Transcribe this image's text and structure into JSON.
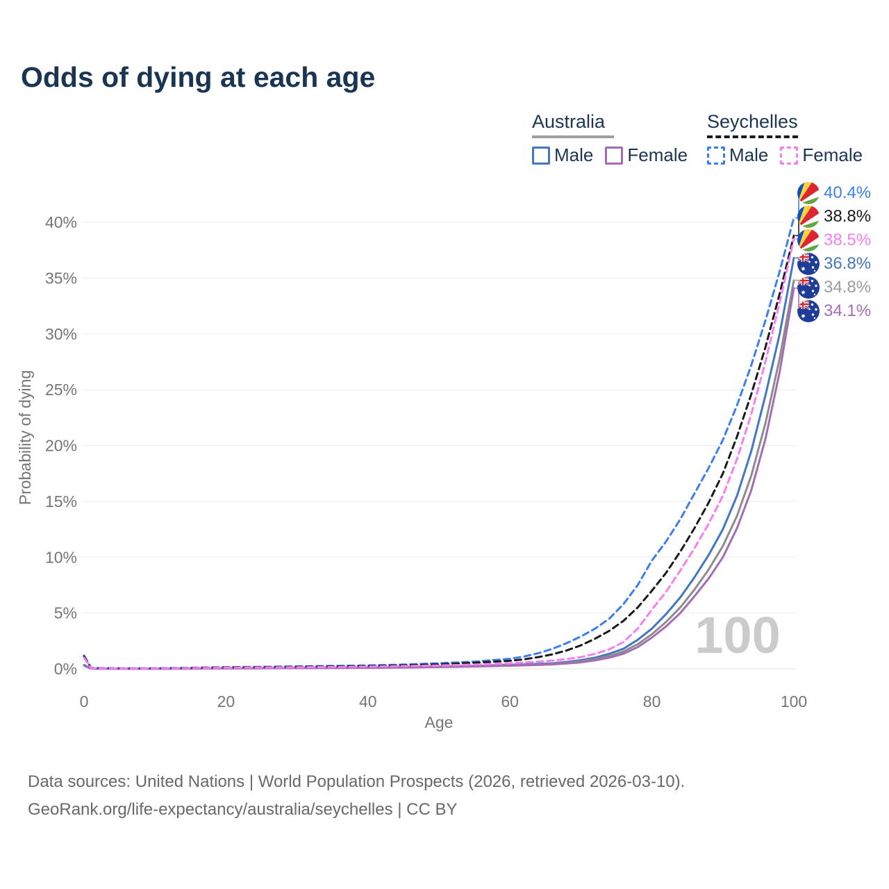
{
  "title": "Odds of dying at each age",
  "watermark": "100",
  "colors": {
    "title": "#1a3553",
    "legend_text": "#1c3554",
    "axis_text": "#757575",
    "grid": "#ebebeb",
    "axis_line": "#dedede",
    "watermark": "#cbcbcb",
    "australia_male": "#4377c0",
    "australia_female": "#a46cb4",
    "australia_both": "#8c8c8c",
    "seychelles_male": "#3b7ef2",
    "seychelles_female": "#f97df2",
    "seychelles_both": "#1a1a1a"
  },
  "legend": {
    "australia": {
      "label": "Australia",
      "underline_color": "#9e9e9e",
      "underline_style": "solid",
      "male": {
        "label": "Male",
        "color": "#4377c0",
        "dash": false
      },
      "female": {
        "label": "Female",
        "color": "#a46cb4",
        "dash": false
      }
    },
    "seychelles": {
      "label": "Seychelles",
      "underline_color": "#1a1a1a",
      "underline_style": "dashed",
      "male": {
        "label": "Male",
        "color": "#3b7ef2",
        "dash": true
      },
      "female": {
        "label": "Female",
        "color": "#f97df2",
        "dash": true
      }
    }
  },
  "end_labels": [
    {
      "series": "seychelles-male",
      "value": "40.4%",
      "color": "#3b7ef2",
      "flag": "seychelles"
    },
    {
      "series": "seychelles-both",
      "value": "38.8%",
      "color": "#1a1a1a",
      "flag": "seychelles"
    },
    {
      "series": "seychelles-female",
      "value": "38.5%",
      "color": "#f97df2",
      "flag": "seychelles"
    },
    {
      "series": "australia-male",
      "value": "36.8%",
      "color": "#4377c0",
      "flag": "australia"
    },
    {
      "series": "australia-both",
      "value": "34.8%",
      "color": "#9c9c9c",
      "flag": "australia"
    },
    {
      "series": "australia-female",
      "value": "34.1%",
      "color": "#a46cb4",
      "flag": "australia"
    }
  ],
  "footer": {
    "line1": "Data sources: United Nations | World Population Prospects (2026, retrieved 2026-03-10).",
    "line2": "GeoRank.org/life-expectancy/australia/seychelles | CC BY"
  },
  "chart_data": {
    "type": "line",
    "title": "Odds of dying at each age",
    "xlabel": "Age",
    "ylabel": "Probability of dying",
    "xlim": [
      0,
      100
    ],
    "ylim_percent": [
      0,
      42
    ],
    "xticks": [
      0,
      20,
      40,
      60,
      80,
      100
    ],
    "ytick_labels": [
      "0%",
      "5%",
      "10%",
      "15%",
      "20%",
      "25%",
      "30%",
      "35%",
      "40%"
    ],
    "grid": "horizontal",
    "legend_position": "top-right",
    "hovered_age": "100",
    "ages": [
      0,
      1,
      5,
      10,
      15,
      20,
      25,
      30,
      35,
      40,
      45,
      50,
      55,
      60,
      62,
      64,
      66,
      68,
      70,
      72,
      74,
      76,
      78,
      80,
      82,
      84,
      86,
      88,
      90,
      92,
      94,
      96,
      98,
      100
    ],
    "series": [
      {
        "id": "australia-male",
        "name": "Australia Male",
        "color": "#4377c0",
        "dash": false,
        "end_value_percent": 36.8,
        "values": [
          0.35,
          0.03,
          0.01,
          0.01,
          0.03,
          0.05,
          0.06,
          0.08,
          0.09,
          0.11,
          0.15,
          0.2,
          0.27,
          0.36,
          0.4,
          0.45,
          0.5,
          0.62,
          0.78,
          1.0,
          1.35,
          1.8,
          2.6,
          3.6,
          4.9,
          6.4,
          8.2,
          10.2,
          12.5,
          15.5,
          19.5,
          24.5,
          30.0,
          36.8
        ]
      },
      {
        "id": "australia-both",
        "name": "Australia",
        "color": "#8c8c8c",
        "dash": false,
        "end_value_percent": 34.8,
        "values": [
          0.3,
          0.025,
          0.009,
          0.009,
          0.025,
          0.045,
          0.055,
          0.07,
          0.085,
          0.1,
          0.14,
          0.18,
          0.24,
          0.32,
          0.36,
          0.4,
          0.45,
          0.55,
          0.68,
          0.88,
          1.15,
          1.55,
          2.2,
          3.1,
          4.2,
          5.5,
          7.1,
          8.9,
          11.0,
          13.7,
          17.3,
          22.0,
          27.8,
          34.8
        ]
      },
      {
        "id": "australia-female",
        "name": "Australia Female",
        "color": "#a46cb4",
        "dash": false,
        "end_value_percent": 34.1,
        "values": [
          0.28,
          0.02,
          0.008,
          0.008,
          0.02,
          0.04,
          0.05,
          0.06,
          0.075,
          0.09,
          0.12,
          0.16,
          0.21,
          0.28,
          0.31,
          0.35,
          0.4,
          0.48,
          0.58,
          0.76,
          1.0,
          1.35,
          1.95,
          2.8,
          3.8,
          5.0,
          6.5,
          8.1,
          10.0,
          12.6,
          16.0,
          20.6,
          26.6,
          34.1
        ]
      },
      {
        "id": "seychelles-male",
        "name": "Seychelles Male",
        "color": "#3b7ef2",
        "dash": true,
        "end_value_percent": 40.4,
        "values": [
          1.2,
          0.08,
          0.05,
          0.05,
          0.1,
          0.15,
          0.18,
          0.22,
          0.26,
          0.3,
          0.38,
          0.5,
          0.65,
          0.9,
          1.1,
          1.4,
          1.8,
          2.3,
          2.9,
          3.6,
          4.5,
          5.8,
          7.5,
          9.7,
          11.4,
          13.4,
          15.7,
          18.0,
          20.5,
          23.6,
          27.2,
          31.2,
          35.6,
          40.4
        ]
      },
      {
        "id": "seychelles-both",
        "name": "Seychelles",
        "color": "#1a1a1a",
        "dash": true,
        "end_value_percent": 38.8,
        "values": [
          1.1,
          0.07,
          0.04,
          0.04,
          0.08,
          0.12,
          0.15,
          0.18,
          0.21,
          0.25,
          0.32,
          0.4,
          0.54,
          0.72,
          0.85,
          1.05,
          1.3,
          1.65,
          2.1,
          2.7,
          3.4,
          4.3,
          5.5,
          7.0,
          8.6,
          10.5,
          12.6,
          14.9,
          17.5,
          20.8,
          24.6,
          28.8,
          33.6,
          38.8
        ]
      },
      {
        "id": "seychelles-female",
        "name": "Seychelles Female",
        "color": "#f97df2",
        "dash": true,
        "end_value_percent": 38.5,
        "values": [
          1.0,
          0.06,
          0.03,
          0.03,
          0.07,
          0.1,
          0.12,
          0.14,
          0.17,
          0.2,
          0.25,
          0.3,
          0.38,
          0.5,
          0.57,
          0.65,
          0.74,
          0.88,
          1.05,
          1.35,
          1.75,
          2.4,
          3.6,
          5.3,
          6.9,
          8.8,
          10.8,
          13.0,
          15.5,
          18.8,
          22.8,
          27.5,
          32.8,
          38.5
        ]
      }
    ]
  }
}
